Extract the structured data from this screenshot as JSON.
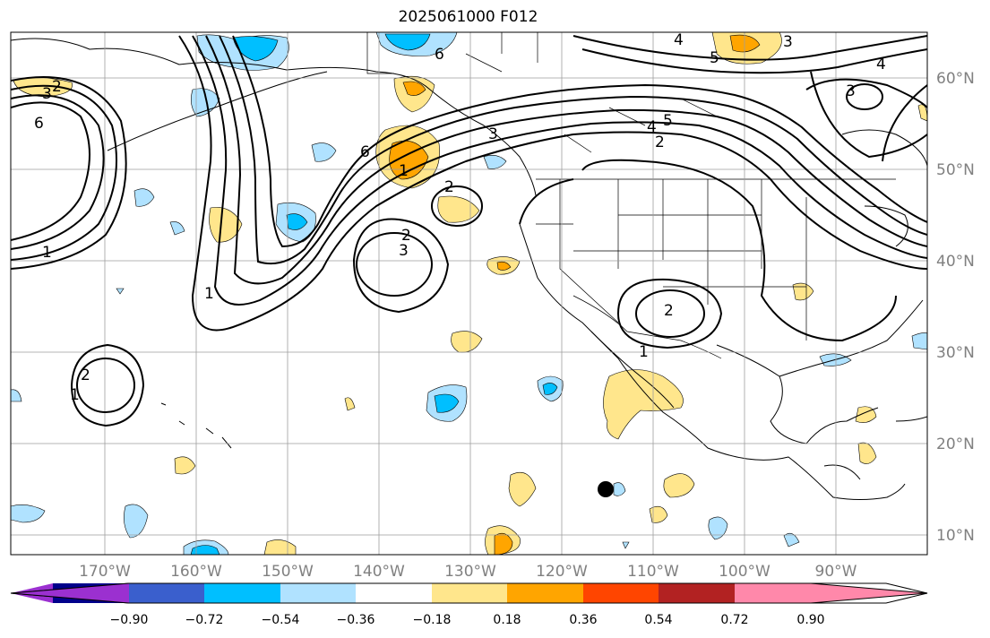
{
  "title": "2025061000 F012",
  "map": {
    "lon_labels": [
      "170°W",
      "160°W",
      "150°W",
      "140°W",
      "130°W",
      "120°W",
      "110°W",
      "100°W",
      "90°W"
    ],
    "lat_labels": [
      "60°N",
      "50°N",
      "40°N",
      "30°N",
      "20°N",
      "10°N"
    ],
    "contour_labels": [
      "6",
      "5",
      "4",
      "3",
      "2",
      "1"
    ]
  },
  "colorbar": {
    "ticks": [
      "−0.90",
      "−0.72",
      "−0.54",
      "−0.36",
      "−0.18",
      "0.18",
      "0.36",
      "0.54",
      "0.72",
      "0.90"
    ],
    "colors": [
      "#9b30d0",
      "#00008b",
      "#3a5fcd",
      "#00bfff",
      "#b0e2ff",
      "#ffffff",
      "#ffe68c",
      "#ffa500",
      "#ff4500",
      "#b22222",
      "#ff88aa"
    ]
  }
}
